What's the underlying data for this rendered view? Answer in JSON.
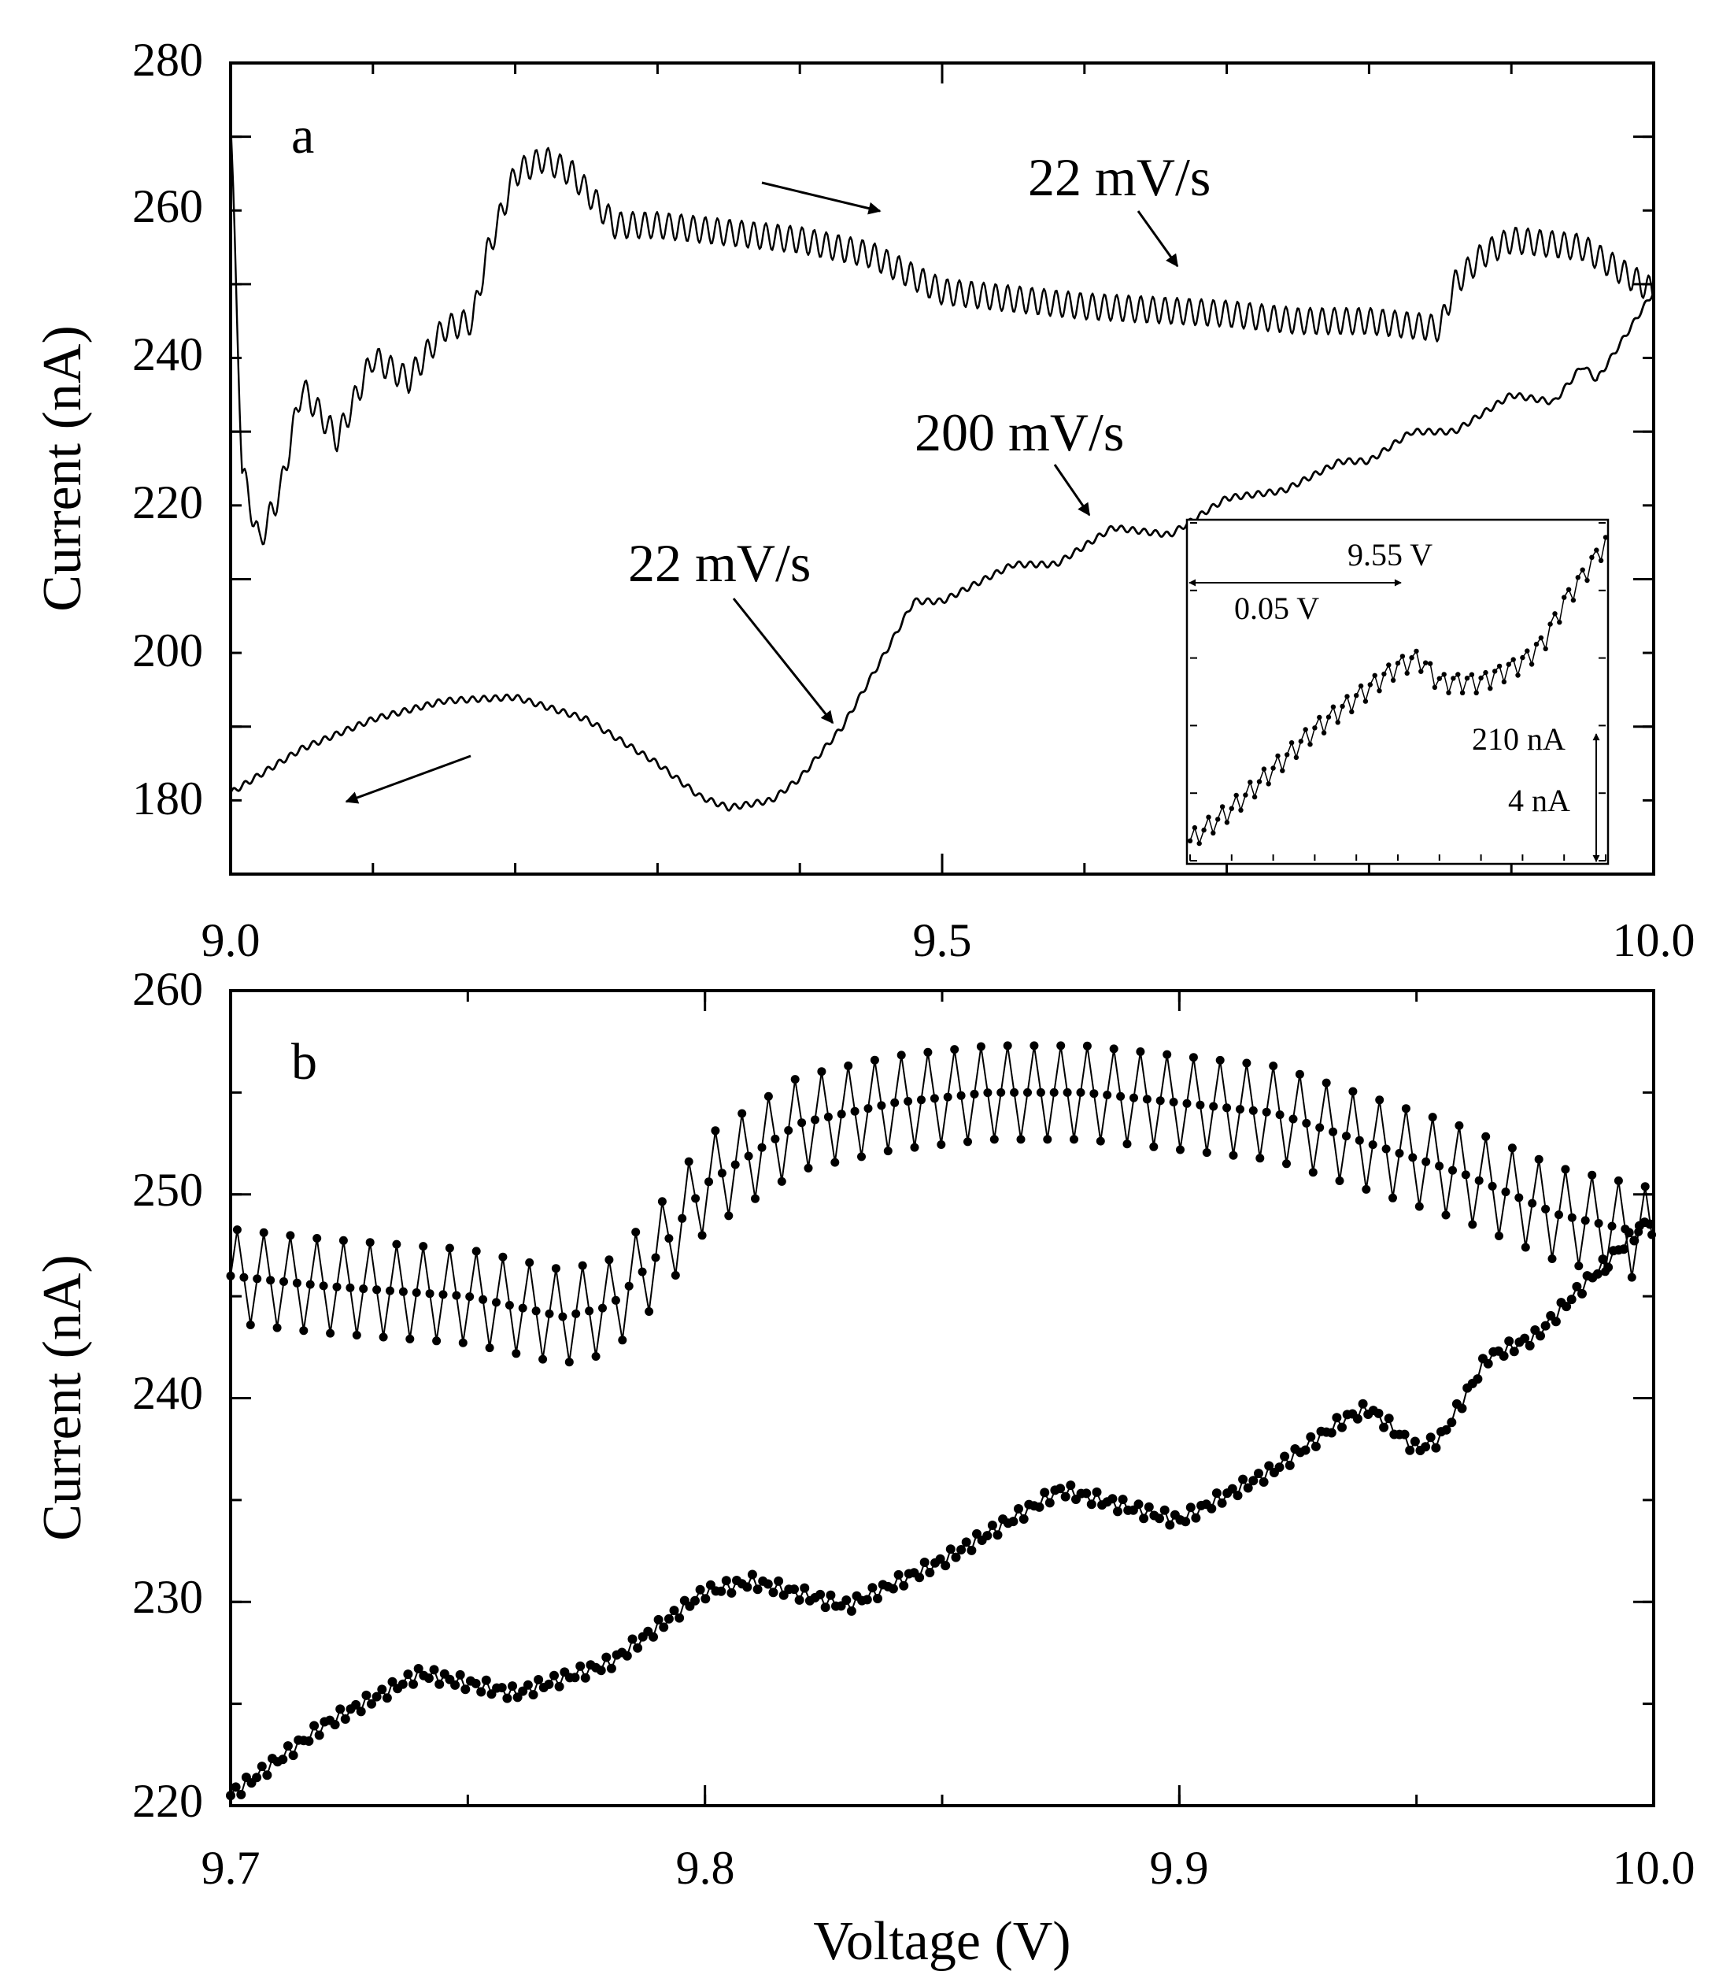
{
  "chart_data": [
    {
      "panel": "a",
      "type": "line",
      "ylabel": "Current (nA)",
      "xlim": [
        9.0,
        10.0
      ],
      "ylim": [
        170,
        280
      ],
      "xticks": [
        "9.0",
        "9.5",
        "10.0"
      ],
      "yticks": [
        "180",
        "200",
        "220",
        "240",
        "260",
        "280"
      ],
      "annotations": [
        "22 mV/s",
        "200 mV/s",
        "22 mV/s"
      ],
      "series": [
        {
          "name": "upper trace (22 mV/s)",
          "osc_amp": 1.8,
          "osc_period_V": 0.0085,
          "x": [
            9.0,
            9.008,
            9.02,
            9.035,
            9.05,
            9.075,
            9.1,
            9.125,
            9.15,
            9.17,
            9.18,
            9.2,
            9.22,
            9.24,
            9.27,
            9.3,
            9.35,
            9.4,
            9.45,
            9.5,
            9.6,
            9.7,
            9.75,
            9.8,
            9.85,
            9.86,
            9.88,
            9.9,
            9.95,
            10.0
          ],
          "y": [
            272,
            225,
            215,
            222,
            236,
            229,
            240,
            237,
            244,
            245,
            254,
            265,
            267,
            265,
            258,
            258,
            257,
            256,
            254,
            249,
            247,
            246,
            245,
            245,
            244,
            250,
            254,
            256,
            255,
            249
          ]
        },
        {
          "name": "lower trace (22 mV/s / 200 mV/s)",
          "osc_amp": 0.4,
          "osc_period_V": 0.008,
          "x": [
            9.0,
            9.05,
            9.1,
            9.15,
            9.2,
            9.25,
            9.3,
            9.33,
            9.35,
            9.38,
            9.4,
            9.43,
            9.46,
            9.48,
            9.5,
            9.55,
            9.58,
            9.62,
            9.66,
            9.7,
            9.74,
            9.78,
            9.8,
            9.83,
            9.86,
            9.9,
            9.93,
            9.95,
            9.96,
            9.98,
            10.0
          ],
          "y": [
            181,
            187,
            191,
            193.5,
            194,
            191,
            185,
            180.5,
            179,
            180,
            183,
            190,
            200,
            207,
            207,
            212,
            212,
            217,
            216,
            221,
            222,
            226,
            226,
            230,
            230,
            235,
            234,
            239,
            237,
            243,
            249
          ]
        }
      ],
      "inset": {
        "labels": [
          "9.55 V",
          "0.05 V",
          "210 nA",
          "4 nA"
        ],
        "series": {
          "x_V": [
            9.5,
            9.51,
            9.52,
            9.53,
            9.54,
            9.55,
            9.555,
            9.56,
            9.57,
            9.58,
            9.585,
            9.59,
            9.6
          ],
          "y_nA": [
            205.0,
            205.8,
            206.8,
            207.8,
            208.6,
            209.4,
            209.6,
            209.0,
            209.0,
            209.5,
            210.0,
            211.0,
            212.5
          ]
        }
      }
    },
    {
      "panel": "b",
      "type": "line",
      "xlabel": "Voltage (V)",
      "ylabel": "Current (nA)",
      "xlim": [
        9.7,
        10.0
      ],
      "ylim": [
        220,
        260
      ],
      "xticks": [
        "9.7",
        "9.8",
        "9.9",
        "10.0"
      ],
      "yticks": [
        "220",
        "230",
        "240",
        "250",
        "260"
      ],
      "series": [
        {
          "name": "upper trace",
          "osc_amp": 2.3,
          "osc_period_V": 0.0056,
          "x": [
            9.7,
            9.72,
            9.75,
            9.77,
            9.78,
            9.79,
            9.8,
            9.81,
            9.82,
            9.84,
            9.86,
            9.88,
            9.9,
            9.92,
            9.94,
            9.96,
            9.98,
            10.0
          ],
          "y": [
            246,
            245.5,
            245,
            244,
            244.5,
            247,
            250.5,
            252,
            253.5,
            254.5,
            255,
            255,
            254.5,
            254,
            252.5,
            251,
            249,
            248
          ]
        },
        {
          "name": "lower trace",
          "osc_amp": 0.35,
          "osc_period_V": 0.0028,
          "x": [
            9.7,
            9.72,
            9.74,
            9.76,
            9.78,
            9.8,
            9.81,
            9.83,
            9.85,
            9.875,
            9.9,
            9.92,
            9.935,
            9.94,
            9.95,
            9.955,
            9.965,
            9.975,
            9.985,
            10.0
          ],
          "y": [
            220.5,
            224,
            226.5,
            225.5,
            227,
            230.5,
            231,
            229.8,
            232,
            235.5,
            234,
            236.5,
            239,
            239.5,
            237.5,
            238,
            242,
            243,
            245.5,
            249
          ]
        }
      ]
    }
  ]
}
